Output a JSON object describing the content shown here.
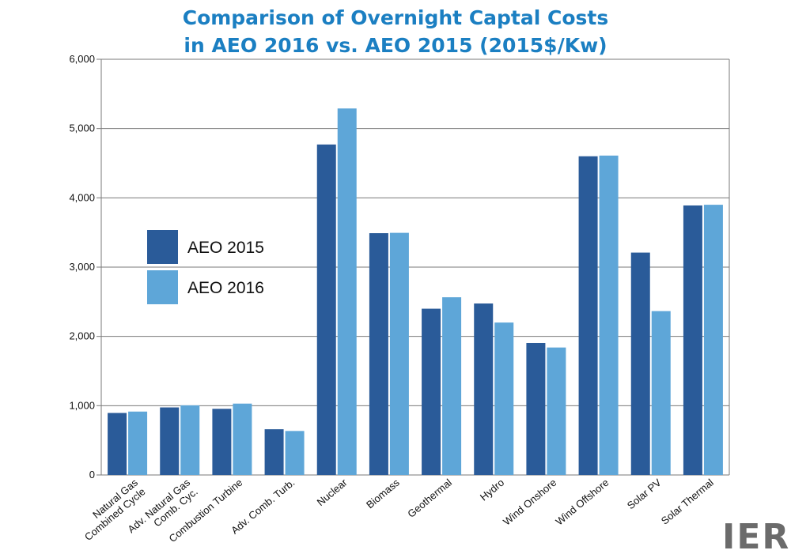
{
  "chart_data": {
    "type": "bar",
    "title": [
      "Comparison of Overnight Captal Costs",
      "in AEO 2016 vs. AEO 2015 (2015$/Kw)"
    ],
    "xlabel": "",
    "ylabel": "",
    "ylim": [
      0,
      6000
    ],
    "yticks": [
      0,
      1000,
      2000,
      3000,
      4000,
      5000,
      6000
    ],
    "ytick_labels": [
      "0",
      "1,000",
      "2,000",
      "3,000",
      "4,000",
      "5,000",
      "6,000"
    ],
    "grid": true,
    "legend_position": "left",
    "categories": [
      [
        "Natural Gas",
        "Combined Cycle"
      ],
      [
        "Adv. Natural Gas",
        "Comb. Cyc."
      ],
      [
        "Combustion Turbine"
      ],
      [
        "Adv. Comb. Turb."
      ],
      [
        "Nuclear"
      ],
      [
        "Biomass"
      ],
      [
        "Geothermal"
      ],
      [
        "Hydro"
      ],
      [
        "Wind Onshore"
      ],
      [
        "Wind Offshore"
      ],
      [
        "Solar PV"
      ],
      [
        "Solar Thermal"
      ]
    ],
    "series": [
      {
        "name": "AEO 2015",
        "color": "#2a5b99",
        "values": [
          895,
          975,
          955,
          660,
          4770,
          3490,
          2400,
          2475,
          1905,
          4600,
          3210,
          3890
        ]
      },
      {
        "name": "AEO 2016",
        "color": "#5ea6d8",
        "values": [
          915,
          1005,
          1030,
          635,
          5290,
          3495,
          2565,
          2200,
          1840,
          4610,
          2365,
          3900
        ]
      }
    ]
  },
  "colors": {
    "title": "#1b7fc2",
    "grid": "#7a7a7a",
    "logo": "#6b6b6b"
  },
  "logo": {
    "text": "IER"
  }
}
